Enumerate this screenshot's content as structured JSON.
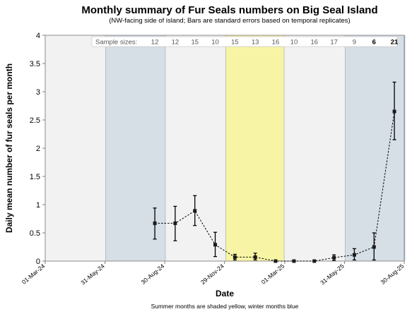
{
  "chart_data": {
    "type": "line",
    "title": "Monthly summary of Fur Seals numbers on Big Seal Island",
    "subtitle": "(NW-facing side of island; Bars are standard errors based on temporal replicates)",
    "xlabel": "Date",
    "ylabel": "Daily mean number of fur seals per month",
    "footnote": "Summer months are shaded yellow, winter months blue",
    "sample_label": "Sample sizes:",
    "ylim": [
      0,
      4
    ],
    "yticks": [
      "0",
      "0.5",
      "1",
      "1.5",
      "2",
      "2.5",
      "3",
      "3.5",
      "4"
    ],
    "xlim": [
      "2024-03-01",
      "2025-08-30"
    ],
    "xticks": [
      {
        "date": "2024-03-01",
        "label": "01-Mar-24"
      },
      {
        "date": "2024-05-31",
        "label": "31-May-24"
      },
      {
        "date": "2024-08-30",
        "label": "30-Aug-24"
      },
      {
        "date": "2024-11-29",
        "label": "29-Nov-24"
      },
      {
        "date": "2025-03-01",
        "label": "01-Mar-25"
      },
      {
        "date": "2025-05-31",
        "label": "31-May-25"
      },
      {
        "date": "2025-08-30",
        "label": "30-Aug-25"
      }
    ],
    "shading": [
      {
        "season": "winter",
        "start": "2024-06-01",
        "end": "2024-08-31",
        "color": "#d6dee6"
      },
      {
        "season": "summer",
        "start": "2024-12-01",
        "end": "2025-02-28",
        "color": "#f7f4a6"
      },
      {
        "season": "winter",
        "start": "2025-06-01",
        "end": "2025-08-31",
        "color": "#d6dee6"
      }
    ],
    "grid": false,
    "series": [
      {
        "points": [
          {
            "x": "2024-08-15",
            "y": 0.67,
            "se_low": 0.39,
            "se_high": 0.94,
            "n": "12"
          },
          {
            "x": "2024-09-15",
            "y": 0.67,
            "se_low": 0.36,
            "se_high": 0.97,
            "n": "12"
          },
          {
            "x": "2024-10-15",
            "y": 0.89,
            "se_low": 0.63,
            "se_high": 1.16,
            "n": "15"
          },
          {
            "x": "2024-11-15",
            "y": 0.29,
            "se_low": 0.08,
            "se_high": 0.51,
            "n": "10"
          },
          {
            "x": "2024-12-15",
            "y": 0.07,
            "se_low": 0.02,
            "se_high": 0.12,
            "n": "15"
          },
          {
            "x": "2025-01-15",
            "y": 0.07,
            "se_low": 0.02,
            "se_high": 0.14,
            "n": "13"
          },
          {
            "x": "2025-02-15",
            "y": 0.0,
            "se_low": 0.0,
            "se_high": 0.0,
            "n": "16"
          },
          {
            "x": "2025-03-15",
            "y": 0.0,
            "se_low": 0.0,
            "se_high": 0.0,
            "n": "10"
          },
          {
            "x": "2025-04-15",
            "y": 0.0,
            "se_low": 0.0,
            "se_high": 0.0,
            "n": "16"
          },
          {
            "x": "2025-05-15",
            "y": 0.06,
            "se_low": 0.01,
            "se_high": 0.11,
            "n": "17"
          },
          {
            "x": "2025-06-15",
            "y": 0.11,
            "se_low": 0.02,
            "se_high": 0.22,
            "n": "9"
          },
          {
            "x": "2025-07-15",
            "y": 0.25,
            "se_low": 0.02,
            "se_high": 0.5,
            "n": "6",
            "n_bold": true
          },
          {
            "x": "2025-08-15",
            "y": 2.65,
            "se_low": 2.15,
            "se_high": 3.17,
            "n": "21",
            "n_bold": true
          }
        ]
      }
    ]
  }
}
